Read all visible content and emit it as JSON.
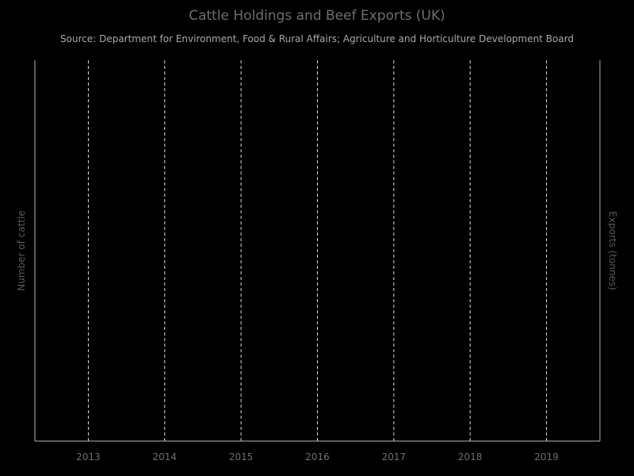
{
  "chart_data": {
    "type": "line",
    "title": "Cattle Holdings and Beef Exports (UK)",
    "subtitle": "Source: Department for Environment, Food & Rural Affairs; Agriculture and Horticulture Development Board",
    "x": [
      "2013",
      "2014",
      "2015",
      "2016",
      "2017",
      "2018",
      "2019"
    ],
    "xlim": [
      2012.3,
      2019.7
    ],
    "ylabel": "Number of cattle",
    "y2label": "Exports (tonnes)",
    "grid": {
      "x": true,
      "y": false,
      "style": "dashed"
    },
    "series": []
  },
  "colors": {
    "background": "#000000",
    "title": "#6e6e6e",
    "subtitle": "#a9a9a9",
    "axis": "#b5b5b5",
    "grid": "#d9d9d9",
    "tick_label": "#6e6e6e",
    "axis_label": "#5a5a5a"
  }
}
